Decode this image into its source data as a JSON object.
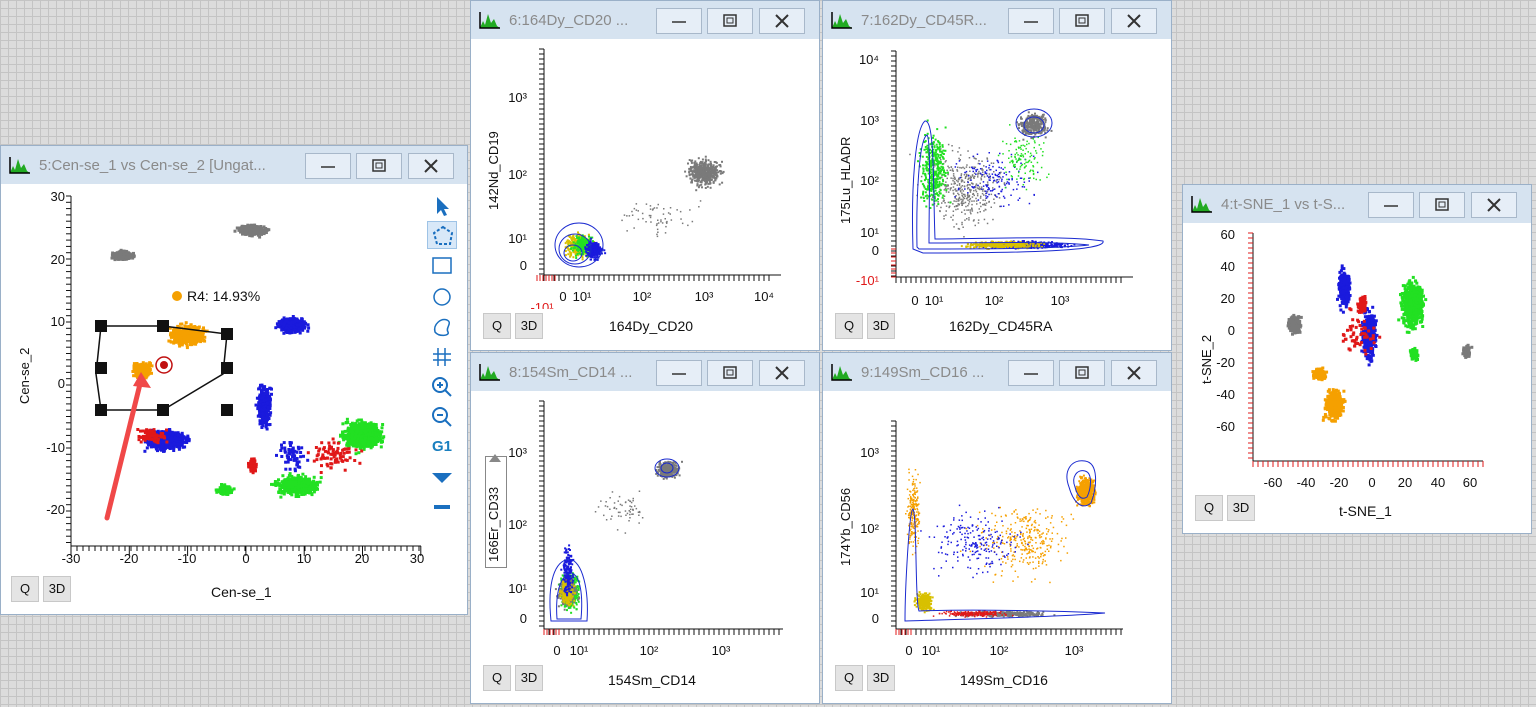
{
  "windows": {
    "w5": {
      "title": "5:Cen-se_1 vs Cen-se_2 [Ungat...",
      "xlabel": "Cen-se_1",
      "ylabel": "Cen-se_2",
      "xticks": [
        "-30",
        "-20",
        "-10",
        "0",
        "10",
        "20",
        "30"
      ],
      "yticks": [
        "30",
        "20",
        "10",
        "0",
        "-10",
        "-20"
      ],
      "gate_label": "R4: 14.93%",
      "q": "Q",
      "threed": "3D",
      "g1": "G1"
    },
    "w6": {
      "title": "6:164Dy_CD20 ...",
      "xlabel": "164Dy_CD20",
      "ylabel": "142Nd_CD19",
      "xticks": [
        "-10¹",
        "0",
        "10¹",
        "10²",
        "10³",
        "10⁴"
      ],
      "yticks": [
        "10³",
        "10²",
        "10¹",
        "0"
      ],
      "q": "Q",
      "threed": "3D"
    },
    "w7": {
      "title": "7:162Dy_CD45R...",
      "xlabel": "162Dy_CD45RA",
      "ylabel": "175Lu_HLADR",
      "xticks": [
        "0",
        "10¹",
        "10²",
        "10³"
      ],
      "yticks": [
        "10⁴",
        "10³",
        "10²",
        "10¹",
        "0",
        "-10¹"
      ],
      "q": "Q",
      "threed": "3D"
    },
    "w8": {
      "title": "8:154Sm_CD14 ...",
      "xlabel": "154Sm_CD14",
      "ylabel": "166Er_CD33",
      "xticks": [
        "0",
        "10¹",
        "10²",
        "10³"
      ],
      "yticks": [
        "10³",
        "10²",
        "10¹",
        "0"
      ],
      "q": "Q",
      "threed": "3D"
    },
    "w9": {
      "title": "9:149Sm_CD16 ...",
      "xlabel": "149Sm_CD16",
      "ylabel": "174Yb_CD56",
      "xticks": [
        "0",
        "10¹",
        "10²",
        "10³"
      ],
      "yticks": [
        "10³",
        "10²",
        "10¹",
        "0"
      ],
      "q": "Q",
      "threed": "3D"
    },
    "w4": {
      "title": "4:t-SNE_1 vs t-S...",
      "xlabel": "t-SNE_1",
      "ylabel": "t-SNE_2",
      "xticks": [
        "-60",
        "-40",
        "-20",
        "0",
        "20",
        "40",
        "60"
      ],
      "yticks": [
        "60",
        "40",
        "20",
        "0",
        "-20",
        "-40",
        "-60"
      ],
      "q": "Q",
      "threed": "3D"
    }
  },
  "colors": {
    "gray": "#7a7a7a",
    "blue": "#1a1add",
    "red": "#e01818",
    "green": "#22e022",
    "orange": "#f5a000",
    "yellow": "#d8c000"
  },
  "icons": {
    "app": "histogram-app-icon",
    "minimize": "minimize-icon",
    "maximize": "maximize-icon",
    "close": "close-icon"
  }
}
